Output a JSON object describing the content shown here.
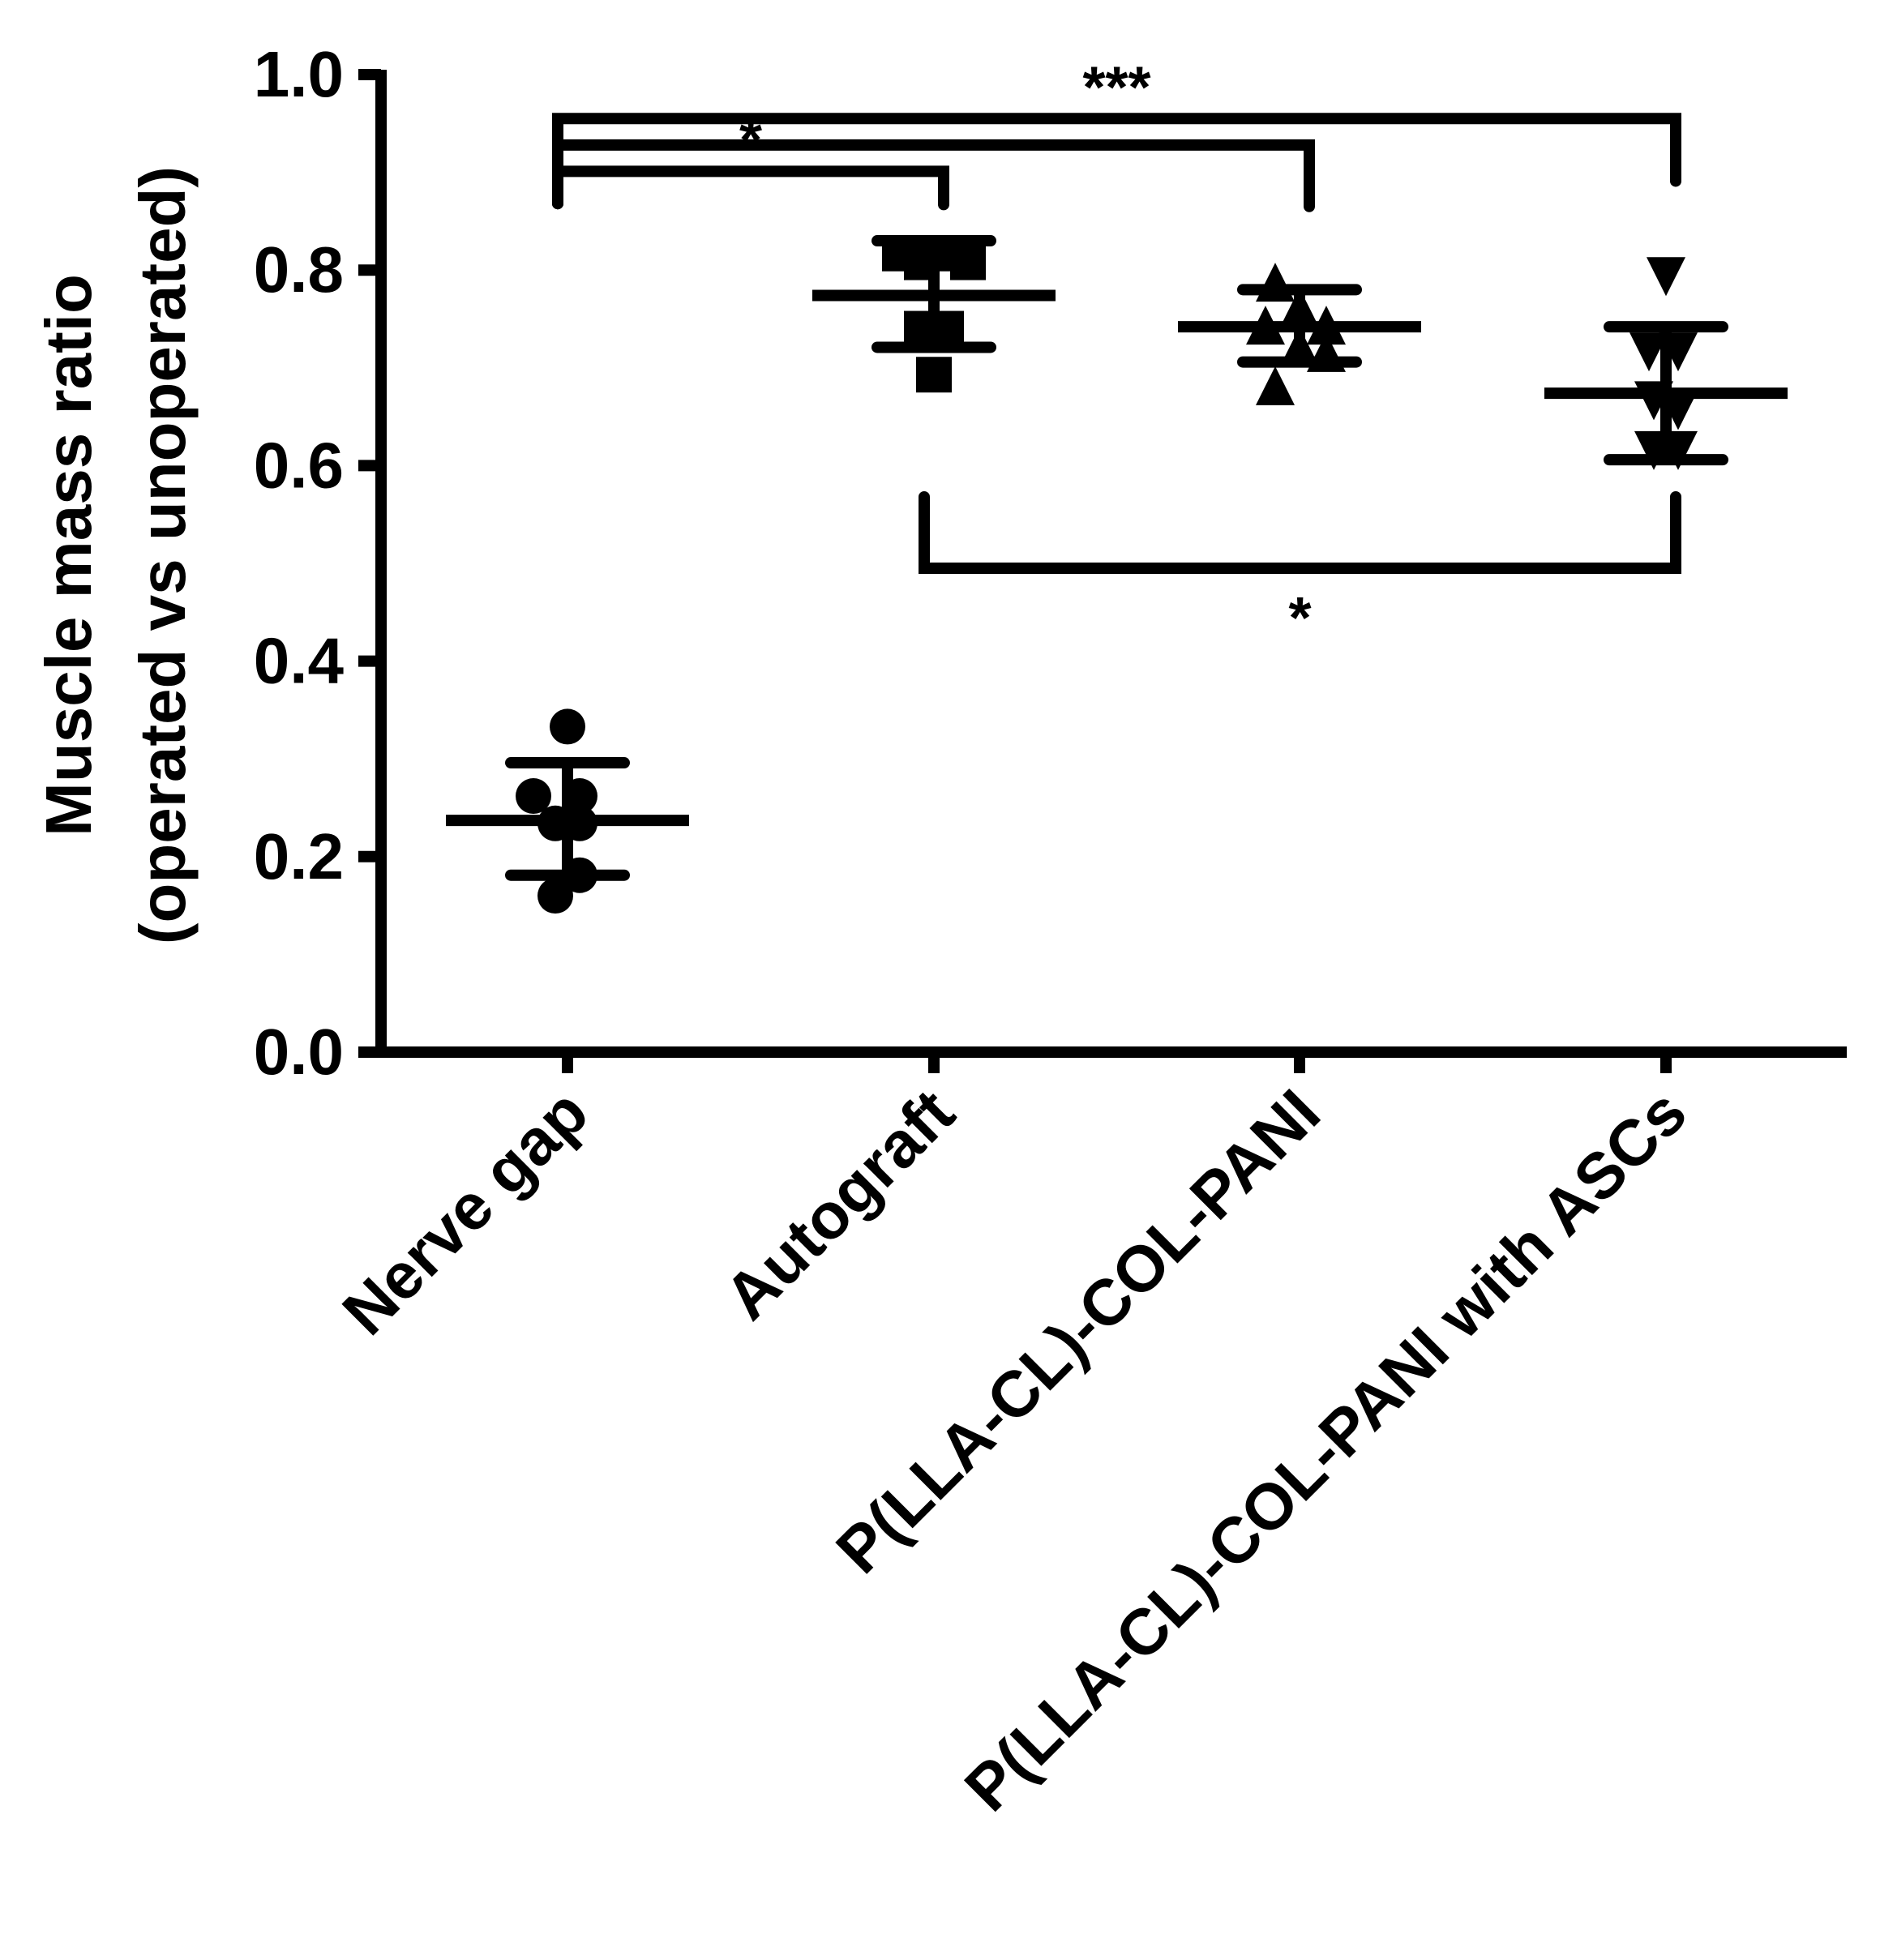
{
  "chart_data": {
    "type": "scatter",
    "ylabel_line1": "Muscle mass ratio",
    "ylabel_line2": "(operated vs unoperated)",
    "ylim": [
      0,
      1.0
    ],
    "yticks": [
      {
        "value": 0.0,
        "label": "0.0"
      },
      {
        "value": 0.2,
        "label": "0.2"
      },
      {
        "value": 0.4,
        "label": "0.4"
      },
      {
        "value": 0.6,
        "label": "0.6"
      },
      {
        "value": 0.8,
        "label": "0.8"
      },
      {
        "value": 1.0,
        "label": "1.0"
      }
    ],
    "grid": false,
    "categories": [
      "Nerve gap",
      "Autograft",
      "P(LLA-CL)-COL-PANI",
      "P(LLA-CL)-COL-PANI with ASCs"
    ],
    "groups": [
      {
        "name": "Nerve gap",
        "marker": "circle",
        "mean": 0.237,
        "sd_low": 0.181,
        "sd_high": 0.296,
        "points": [
          {
            "dx": 0.0,
            "y": 0.333
          },
          {
            "dx": -0.28,
            "y": 0.262
          },
          {
            "dx": 0.1,
            "y": 0.262
          },
          {
            "dx": -0.1,
            "y": 0.234
          },
          {
            "dx": 0.1,
            "y": 0.234
          },
          {
            "dx": 0.1,
            "y": 0.181
          },
          {
            "dx": -0.1,
            "y": 0.16
          }
        ]
      },
      {
        "name": "Autograft",
        "marker": "square",
        "mean": 0.774,
        "sd_low": 0.721,
        "sd_high": 0.83,
        "points": [
          {
            "dx": -0.28,
            "y": 0.817
          },
          {
            "dx": -0.1,
            "y": 0.808
          },
          {
            "dx": 0.1,
            "y": 0.817
          },
          {
            "dx": 0.28,
            "y": 0.808
          },
          {
            "dx": -0.1,
            "y": 0.74
          },
          {
            "dx": 0.1,
            "y": 0.74
          },
          {
            "dx": 0.0,
            "y": 0.693
          }
        ]
      },
      {
        "name": "P(LLA-CL)-COL-PANI",
        "marker": "triangle-up",
        "mean": 0.742,
        "sd_low": 0.706,
        "sd_high": 0.78,
        "points": [
          {
            "dx": -0.2,
            "y": 0.786
          },
          {
            "dx": 0.0,
            "y": 0.76
          },
          {
            "dx": -0.28,
            "y": 0.742
          },
          {
            "dx": 0.22,
            "y": 0.742
          },
          {
            "dx": 0.0,
            "y": 0.72
          },
          {
            "dx": 0.22,
            "y": 0.714
          },
          {
            "dx": -0.2,
            "y": 0.68
          }
        ]
      },
      {
        "name": "P(LLA-CL)-COL-PANI with ASCs",
        "marker": "triangle-down",
        "mean": 0.674,
        "sd_low": 0.606,
        "sd_high": 0.742,
        "points": [
          {
            "dx": 0.0,
            "y": 0.795
          },
          {
            "dx": -0.14,
            "y": 0.718
          },
          {
            "dx": 0.1,
            "y": 0.718
          },
          {
            "dx": -0.1,
            "y": 0.668
          },
          {
            "dx": 0.1,
            "y": 0.658
          },
          {
            "dx": -0.1,
            "y": 0.617
          },
          {
            "dx": 0.1,
            "y": 0.617
          }
        ]
      }
    ],
    "significance": [
      {
        "from": 0,
        "to": 3,
        "label": "***",
        "position": "above",
        "bar_y": 0.955,
        "leg_ends": [
          0.868,
          0.891
        ]
      },
      {
        "from": 0,
        "to": 2,
        "label": "",
        "position": "above",
        "bar_y": 0.928,
        "leg_ends": [
          0.868,
          0.865
        ]
      },
      {
        "from": 0,
        "to": 1,
        "label": "*",
        "position": "above",
        "bar_y": 0.901,
        "leg_ends": [
          0.868,
          0.867
        ]
      },
      {
        "from": 1,
        "to": 3,
        "label": "*",
        "position": "below",
        "bar_y": 0.495,
        "leg_ends": [
          0.568,
          0.568
        ]
      }
    ]
  }
}
